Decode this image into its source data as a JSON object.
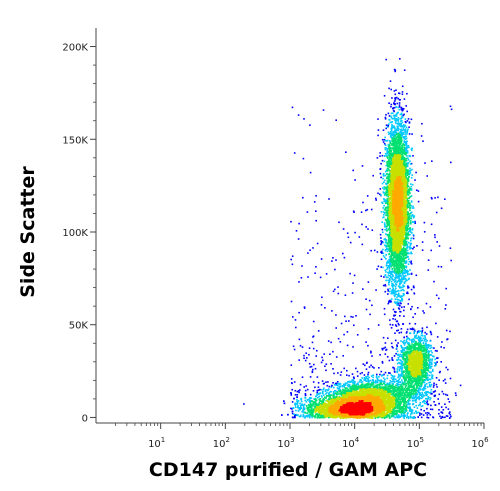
{
  "chart_data": {
    "type": "scatter",
    "style": "density-dot-plot",
    "title": "",
    "xlabel": "CD147 purified / GAM APC",
    "ylabel": "Side Scatter",
    "x_scale": "log",
    "xlim": [
      1,
      1000000
    ],
    "x_ticks": [
      {
        "value": 10,
        "base": "10",
        "exp": "1"
      },
      {
        "value": 100,
        "base": "10",
        "exp": "2"
      },
      {
        "value": 1000,
        "base": "10",
        "exp": "3"
      },
      {
        "value": 10000,
        "base": "10",
        "exp": "4"
      },
      {
        "value": 100000,
        "base": "10",
        "exp": "5"
      },
      {
        "value": 1000000,
        "base": "10",
        "exp": "6"
      }
    ],
    "ylim": [
      -3000,
      210000
    ],
    "y_ticks": [
      {
        "value": 0,
        "label": "0"
      },
      {
        "value": 50000,
        "label": "50K"
      },
      {
        "value": 100000,
        "label": "100K"
      },
      {
        "value": 150000,
        "label": "150K"
      },
      {
        "value": 200000,
        "label": "200K"
      }
    ],
    "grid": false,
    "populations": [
      {
        "center_x": 45000,
        "center_y": 115000,
        "spread_log_x": 0.09,
        "spread_y": 22000,
        "events": 5200
      },
      {
        "center_x": 85000,
        "center_y": 30000,
        "spread_log_x": 0.12,
        "spread_y": 7000,
        "events": 1500
      },
      {
        "center_x": 9000,
        "center_y": 5000,
        "spread_log_x": 0.35,
        "spread_y": 3500,
        "events": 4200
      },
      {
        "center_x": 20000,
        "center_y": 12000,
        "spread_log_x": 0.35,
        "spread_y": 4500,
        "events": 2200
      }
    ],
    "density_colors": [
      "#0000ff",
      "#00c8ff",
      "#00e070",
      "#c8e000",
      "#ffaa00",
      "#ff0000"
    ]
  }
}
